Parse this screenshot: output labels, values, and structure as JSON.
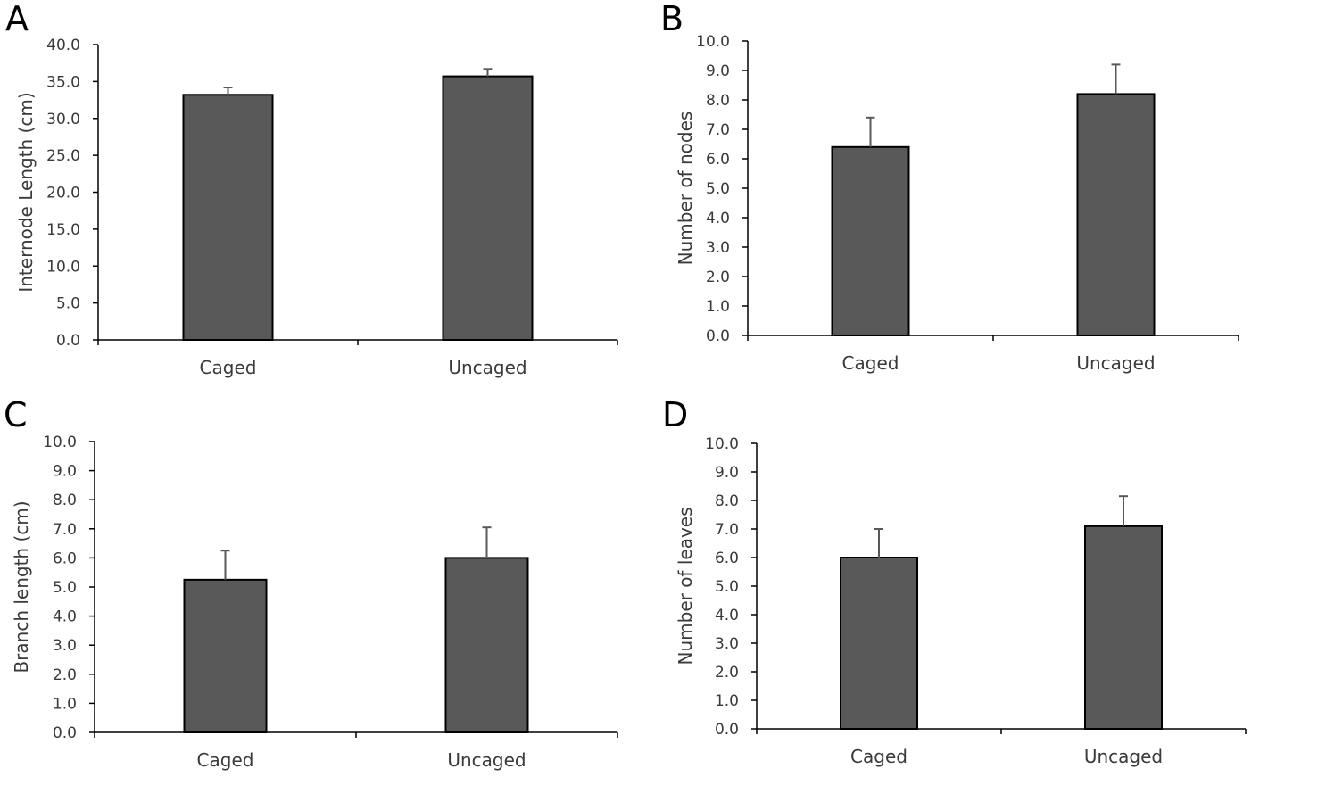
{
  "colors": {
    "bar": "#595959",
    "bar_outline": "#000000",
    "axis": "#000000",
    "error_bar": "#595959",
    "text": "#3a3a3a"
  },
  "chart_data": [
    {
      "panel": "A",
      "type": "bar",
      "categories": [
        "Caged",
        "Uncaged"
      ],
      "values": [
        33.2,
        35.7
      ],
      "errors": [
        1.0,
        1.0
      ],
      "ylabel": "Internode Length (cm)",
      "xlabel": "",
      "ylim": [
        0,
        40
      ],
      "yticks": [
        "0.0",
        "5.0",
        "10.0",
        "15.0",
        "20.0",
        "25.0",
        "30.0",
        "35.0",
        "40.0"
      ],
      "error_bars": "upper",
      "grid": false,
      "legend": "none"
    },
    {
      "panel": "B",
      "type": "bar",
      "categories": [
        "Caged",
        "Uncaged"
      ],
      "values": [
        6.4,
        8.2
      ],
      "errors": [
        1.0,
        1.0
      ],
      "ylabel": "Number of nodes",
      "xlabel": "",
      "ylim": [
        0,
        10
      ],
      "yticks": [
        "0.0",
        "1.0",
        "2.0",
        "3.0",
        "4.0",
        "5.0",
        "6.0",
        "7.0",
        "8.0",
        "9.0",
        "10.0"
      ],
      "error_bars": "upper",
      "grid": false,
      "legend": "none"
    },
    {
      "panel": "C",
      "type": "bar",
      "categories": [
        "Caged",
        "Uncaged"
      ],
      "values": [
        5.25,
        6.0
      ],
      "errors": [
        1.0,
        1.05
      ],
      "ylabel": "Branch length (cm)",
      "xlabel": "",
      "ylim": [
        0,
        10
      ],
      "yticks": [
        "0.0",
        "1.0",
        "2.0",
        "3.0",
        "4.0",
        "5.0",
        "6.0",
        "7.0",
        "8.0",
        "9.0",
        "10.0"
      ],
      "error_bars": "upper",
      "grid": false,
      "legend": "none"
    },
    {
      "panel": "D",
      "type": "bar",
      "categories": [
        "Caged",
        "Uncaged"
      ],
      "values": [
        6.0,
        7.1
      ],
      "errors": [
        1.0,
        1.05
      ],
      "ylabel": "Number of leaves",
      "xlabel": "",
      "ylim": [
        0,
        10
      ],
      "yticks": [
        "0.0",
        "1.0",
        "2.0",
        "3.0",
        "4.0",
        "5.0",
        "6.0",
        "7.0",
        "8.0",
        "9.0",
        "10.0"
      ],
      "error_bars": "upper",
      "grid": false,
      "legend": "none"
    }
  ]
}
